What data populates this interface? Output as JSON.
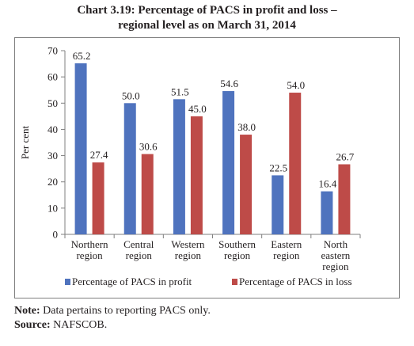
{
  "title_line1": "Chart 3.19: Percentage of PACS in profit and loss –",
  "title_line2": "regional level as on March 31, 2014",
  "chart_data": {
    "type": "bar",
    "categories": [
      [
        "Northern",
        "region"
      ],
      [
        "Central",
        "region"
      ],
      [
        "Western",
        "region"
      ],
      [
        "Southern",
        "region"
      ],
      [
        "Eastern",
        "region"
      ],
      [
        "North",
        "eastern",
        "region"
      ]
    ],
    "series": [
      {
        "name": "Percentage of PACS in profit",
        "values": [
          65.2,
          50.0,
          51.5,
          54.6,
          22.5,
          16.4
        ],
        "labels": [
          "65.2",
          "50.0",
          "51.5",
          "54.6",
          "22.5",
          "16.4"
        ],
        "color": "#4f73be"
      },
      {
        "name": "Percentage of PACS in loss",
        "values": [
          27.4,
          30.6,
          45.0,
          38.0,
          54.0,
          26.7
        ],
        "labels": [
          "27.4",
          "30.6",
          "45.0",
          "38.0",
          "54.0",
          "26.7"
        ],
        "color": "#be4b48"
      }
    ],
    "ylabel": "Per cent",
    "ylim": [
      0,
      70
    ],
    "yticks": [
      0,
      10,
      20,
      30,
      40,
      50,
      60,
      70
    ],
    "grid": false,
    "legend": "bottom"
  },
  "note_label": "Note:",
  "note_text": " Data pertains to reporting PACS only.",
  "source_label": "Source:",
  "source_text": " NAFSCOB."
}
